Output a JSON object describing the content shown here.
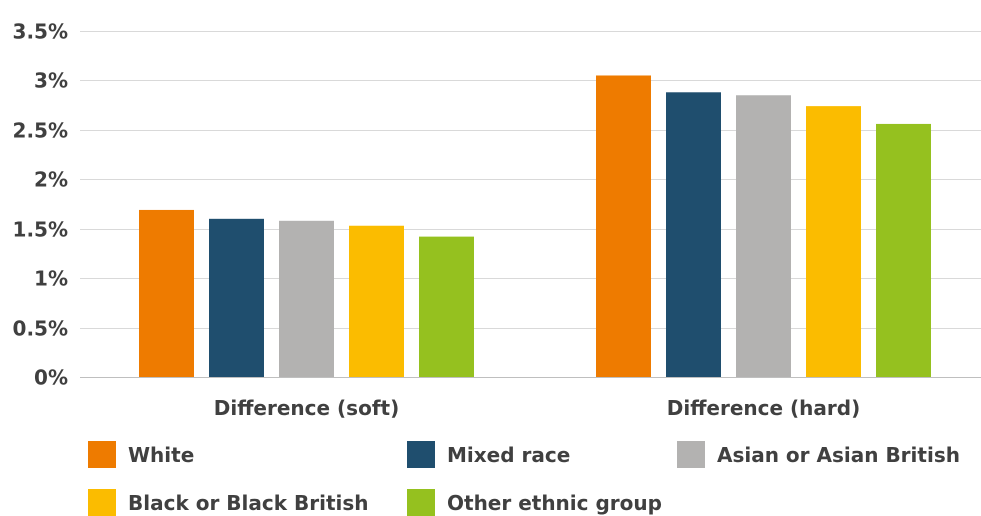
{
  "chart_data": {
    "type": "bar",
    "categories": [
      "Difference  (soft)",
      "Difference (hard)"
    ],
    "series": [
      {
        "name": "White",
        "color": "#ee7b00",
        "values": [
          1.69,
          3.05
        ]
      },
      {
        "name": "Mixed race",
        "color": "#1f4e6e",
        "values": [
          1.6,
          2.88
        ]
      },
      {
        "name": "Asian or Asian British",
        "color": "#b3b2b1",
        "values": [
          1.58,
          2.85
        ]
      },
      {
        "name": "Black or Black British",
        "color": "#fbbc00",
        "values": [
          1.53,
          2.74
        ]
      },
      {
        "name": "Other ethnic group",
        "color": "#95c11f",
        "values": [
          1.42,
          2.56
        ]
      }
    ],
    "ylim": [
      0,
      3.5
    ],
    "yticks": [
      0,
      0.5,
      1,
      1.5,
      2,
      2.5,
      3,
      3.5
    ],
    "ytick_labels": [
      "0%",
      "0.5%",
      "1%",
      "1.5%",
      "2%",
      "2.5%",
      "3%",
      "3.5%"
    ],
    "grid": true,
    "legend_position": "bottom"
  }
}
